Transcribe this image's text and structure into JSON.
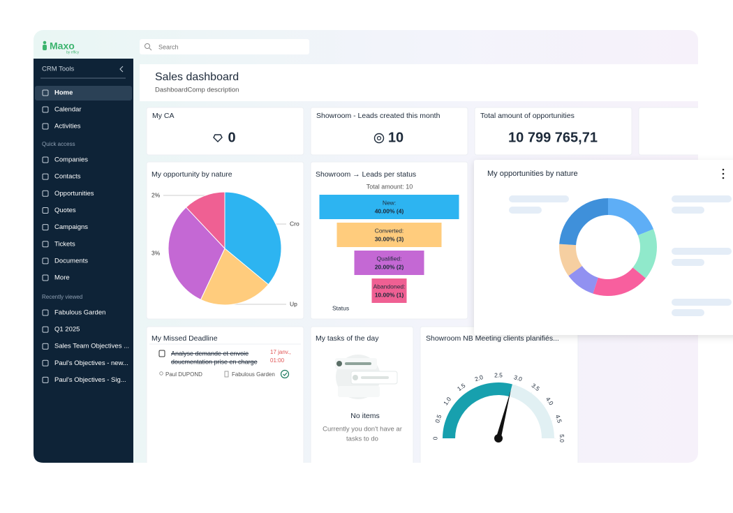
{
  "app": {
    "logo": "Maxo",
    "logo_by": "by efficy",
    "search_placeholder": "Search"
  },
  "sidebar": {
    "section": "CRM Tools",
    "main": [
      "Home",
      "Calendar",
      "Activities"
    ],
    "quick_access_title": "Quick access",
    "quick_access": [
      "Companies",
      "Contacts",
      "Opportunities",
      "Quotes",
      "Campaigns",
      "Tickets",
      "Documents",
      "More"
    ],
    "recent_title": "Recently viewed",
    "recent": [
      "Fabulous Garden",
      "Q1 2025",
      "Sales Team Objectives ...",
      "Paul's Objectives - new...",
      "Paul's Objectives - Sig..."
    ]
  },
  "header": {
    "title": "Sales dashboard",
    "description": "DashboardComp description"
  },
  "kpis": [
    {
      "title": "My CA",
      "value": "0"
    },
    {
      "title": "Showroom - Leads created this month",
      "value": "10"
    },
    {
      "title": "Total amount of opportunities",
      "value": "10 799 765,71"
    }
  ],
  "missed_deadline": {
    "title": "My Missed Deadline",
    "items": [
      {
        "text_lines": [
          "Analyse demande et envoie",
          "doucmentation prise en charge"
        ],
        "date_lines": [
          "17 janv.,",
          "01:00"
        ],
        "owner": "Paul DUPOND",
        "company": "Fabulous Garden"
      }
    ]
  },
  "tasks": {
    "title": "My tasks of the day",
    "empty_title": "No items",
    "empty_lines": [
      "Currently you don't have ar",
      "tasks to do"
    ]
  },
  "chart_data": [
    {
      "type": "pie",
      "title": "My opportunity by nature",
      "values": [
        36,
        21,
        31,
        12
      ],
      "colors": [
        "#2db4f1",
        "#ffcc7d",
        "#c468d4",
        "#ef6093"
      ],
      "annotations": [
        "2%",
        "3%",
        "Cro",
        "Up"
      ]
    },
    {
      "type": "funnel",
      "title": "Showroom → Leads per status",
      "subtitle": "Total amount: 10",
      "categories": [
        "New:",
        "Converted:",
        "Qualified:",
        "Abandoned:"
      ],
      "values": [
        4,
        3,
        2,
        1
      ],
      "value_labels": [
        "40.00% (4)",
        "30.00% (3)",
        "20.00% (2)",
        "10.00% (1)"
      ],
      "colors": [
        "#2db4f1",
        "#ffcc7d",
        "#c468d4",
        "#ef6093"
      ],
      "xlabel": "Status"
    },
    {
      "type": "donut",
      "title": "My opportunities by nature",
      "values": [
        19,
        17,
        19,
        10,
        11,
        24
      ],
      "colors": [
        "#5eaef6",
        "#90e9cb",
        "#f85f9e",
        "#9191f1",
        "#f6cfa1",
        "#3f90da"
      ]
    },
    {
      "type": "gauge",
      "title": "Showroom NB Meeting clients planifiés...",
      "value": 2.9,
      "ylim": [
        0,
        5
      ],
      "yticks": [
        0,
        0.5,
        {
          "value": 1,
          "label": "1.0"
        },
        1.5,
        {
          "value": 2,
          "label": "2.0"
        },
        2.5,
        {
          "value": 3,
          "label": "3.0"
        },
        3.5,
        {
          "value": 4,
          "label": "4.0"
        },
        4.5,
        {
          "value": 5,
          "label": "5.0"
        }
      ],
      "color": "#17a0ae"
    }
  ]
}
